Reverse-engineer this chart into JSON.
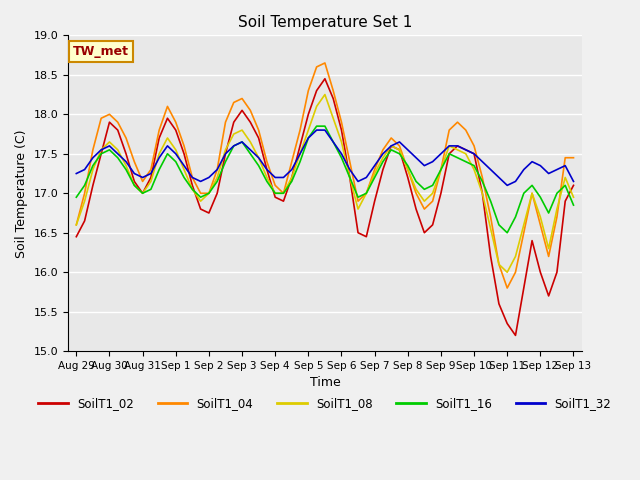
{
  "title": "Soil Temperature Set 1",
  "ylabel": "Soil Temperature (C)",
  "xlabel": "Time",
  "ylim": [
    15.0,
    19.0
  ],
  "yticks": [
    15.0,
    15.5,
    16.0,
    16.5,
    17.0,
    17.5,
    18.0,
    18.5,
    19.0
  ],
  "annotation": "TW_met",
  "bg_color": "#e8e8e8",
  "fig_color": "#f0f0f0",
  "series": {
    "SoilT1_02": {
      "color": "#cc0000",
      "label": "SoilT1_02"
    },
    "SoilT1_04": {
      "color": "#ff8800",
      "label": "SoilT1_04"
    },
    "SoilT1_08": {
      "color": "#ddcc00",
      "label": "SoilT1_08"
    },
    "SoilT1_16": {
      "color": "#00cc00",
      "label": "SoilT1_16"
    },
    "SoilT1_32": {
      "color": "#0000cc",
      "label": "SoilT1_32"
    }
  },
  "xtick_labels": [
    "Aug 29",
    "Aug 30",
    "Aug 31",
    "Sep 1",
    "Sep 2",
    "Sep 3",
    "Sep 4",
    "Sep 5",
    "Sep 6",
    "Sep 7",
    "Sep 8",
    "Sep 9",
    "Sep 10",
    "Sep 11",
    "Sep 12",
    "Sep 13"
  ],
  "xtick_positions": [
    0,
    4,
    8,
    12,
    16,
    20,
    24,
    28,
    32,
    36,
    40,
    44,
    48,
    52,
    56,
    60
  ],
  "n_points": 61,
  "SoilT1_02": [
    16.45,
    16.65,
    17.1,
    17.5,
    17.9,
    17.8,
    17.5,
    17.15,
    17.0,
    17.2,
    17.7,
    17.95,
    17.8,
    17.5,
    17.1,
    16.8,
    16.75,
    17.0,
    17.5,
    17.9,
    18.05,
    17.9,
    17.7,
    17.3,
    16.95,
    16.9,
    17.2,
    17.6,
    18.0,
    18.3,
    18.45,
    18.2,
    17.8,
    17.2,
    16.5,
    16.45,
    16.9,
    17.3,
    17.6,
    17.55,
    17.2,
    16.8,
    16.5,
    16.6,
    17.0,
    17.5,
    17.6,
    17.55,
    17.5,
    17.0,
    16.2,
    15.6,
    15.35,
    15.2,
    15.8,
    16.4,
    16.0,
    15.7,
    16.0,
    16.9,
    17.1
  ],
  "SoilT1_04": [
    16.6,
    17.0,
    17.55,
    17.95,
    18.0,
    17.9,
    17.7,
    17.4,
    17.15,
    17.3,
    17.8,
    18.1,
    17.9,
    17.6,
    17.2,
    17.0,
    17.0,
    17.3,
    17.9,
    18.15,
    18.2,
    18.05,
    17.8,
    17.4,
    17.1,
    17.0,
    17.4,
    17.8,
    18.3,
    18.6,
    18.65,
    18.3,
    17.9,
    17.4,
    16.9,
    17.0,
    17.3,
    17.55,
    17.7,
    17.6,
    17.3,
    17.0,
    16.8,
    16.9,
    17.3,
    17.8,
    17.9,
    17.8,
    17.6,
    17.2,
    16.7,
    16.1,
    15.8,
    16.0,
    16.5,
    17.0,
    16.6,
    16.2,
    16.7,
    17.45,
    17.45
  ],
  "SoilT1_08": [
    16.6,
    16.9,
    17.3,
    17.55,
    17.65,
    17.55,
    17.35,
    17.1,
    17.0,
    17.15,
    17.5,
    17.7,
    17.55,
    17.3,
    17.05,
    16.9,
    17.0,
    17.2,
    17.55,
    17.75,
    17.8,
    17.65,
    17.45,
    17.2,
    17.0,
    17.0,
    17.2,
    17.5,
    17.8,
    18.1,
    18.25,
    17.95,
    17.65,
    17.2,
    16.8,
    17.0,
    17.25,
    17.45,
    17.6,
    17.55,
    17.3,
    17.05,
    16.9,
    17.0,
    17.3,
    17.6,
    17.55,
    17.5,
    17.3,
    17.0,
    16.55,
    16.1,
    16.0,
    16.2,
    16.6,
    17.0,
    16.7,
    16.3,
    16.8,
    17.2,
    16.95
  ],
  "SoilT1_16": [
    16.95,
    17.1,
    17.35,
    17.5,
    17.55,
    17.45,
    17.3,
    17.1,
    17.0,
    17.05,
    17.3,
    17.5,
    17.4,
    17.2,
    17.05,
    16.95,
    17.0,
    17.15,
    17.4,
    17.6,
    17.65,
    17.5,
    17.35,
    17.15,
    17.0,
    17.0,
    17.15,
    17.4,
    17.7,
    17.85,
    17.85,
    17.65,
    17.45,
    17.2,
    16.95,
    17.0,
    17.2,
    17.4,
    17.55,
    17.5,
    17.35,
    17.15,
    17.05,
    17.1,
    17.3,
    17.5,
    17.45,
    17.4,
    17.35,
    17.15,
    16.9,
    16.6,
    16.5,
    16.7,
    17.0,
    17.1,
    16.95,
    16.75,
    17.0,
    17.1,
    16.85
  ],
  "SoilT1_32": [
    17.25,
    17.3,
    17.45,
    17.55,
    17.6,
    17.5,
    17.4,
    17.25,
    17.2,
    17.25,
    17.45,
    17.6,
    17.5,
    17.35,
    17.2,
    17.15,
    17.2,
    17.3,
    17.5,
    17.6,
    17.65,
    17.55,
    17.45,
    17.3,
    17.2,
    17.2,
    17.3,
    17.5,
    17.7,
    17.8,
    17.8,
    17.65,
    17.5,
    17.3,
    17.15,
    17.2,
    17.35,
    17.5,
    17.6,
    17.65,
    17.55,
    17.45,
    17.35,
    17.4,
    17.5,
    17.6,
    17.6,
    17.55,
    17.5,
    17.4,
    17.3,
    17.2,
    17.1,
    17.15,
    17.3,
    17.4,
    17.35,
    17.25,
    17.3,
    17.35,
    17.15
  ]
}
